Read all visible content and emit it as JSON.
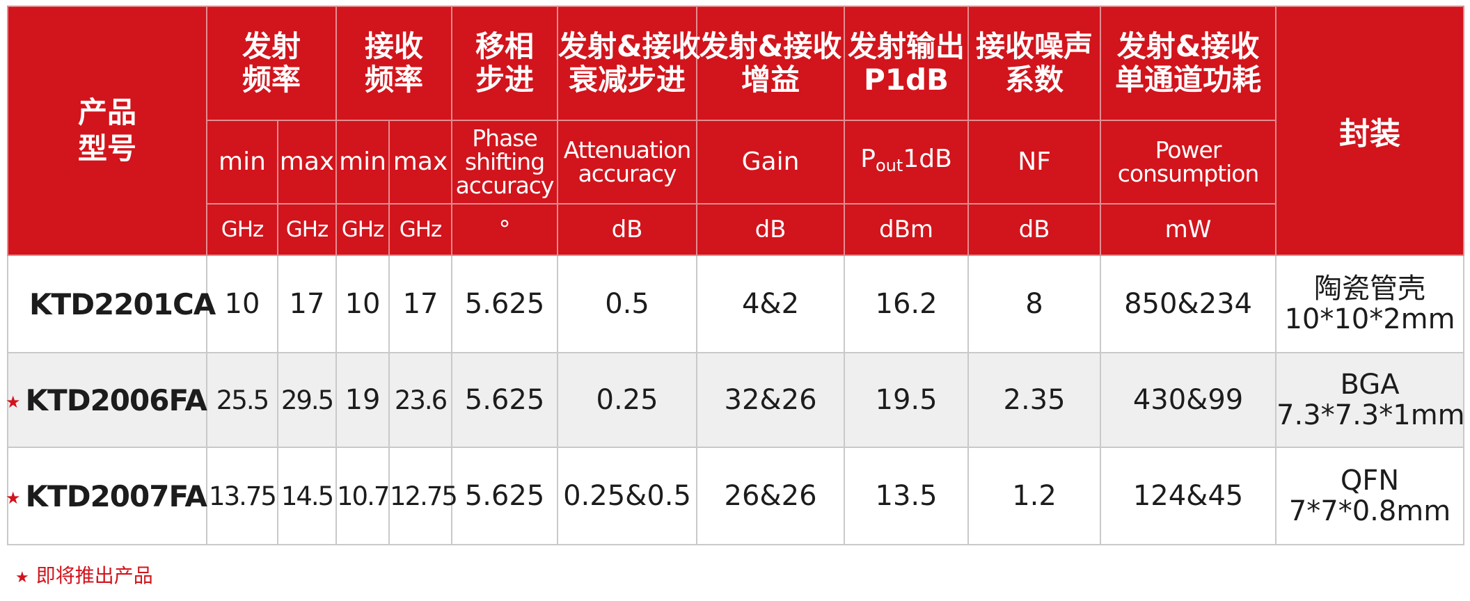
{
  "header": {
    "model": [
      "产品",
      "型号"
    ],
    "tx_freq": [
      "发射",
      "频率"
    ],
    "rx_freq": [
      "接收",
      "频率"
    ],
    "phase_step": [
      "移相",
      "步进"
    ],
    "atten_step": [
      "发射&接收",
      "衰减步进"
    ],
    "gain": [
      "发射&接收",
      "增益"
    ],
    "p1db": [
      "发射输出",
      "P1dB"
    ],
    "nf": [
      "接收噪声",
      "系数"
    ],
    "power": [
      "发射&接收",
      "单通道功耗"
    ],
    "package": "封装"
  },
  "subheader": {
    "min": "min",
    "max": "max",
    "phase": [
      "Phase",
      "shifting",
      "accuracy"
    ],
    "atten": [
      "Attenuation",
      "accuracy"
    ],
    "gain": "Gain",
    "pout_p": "P",
    "pout_sub": "out",
    "pout_rest": "1dB",
    "nf": "NF",
    "power": [
      "Power",
      "consumption"
    ]
  },
  "units": {
    "tx_min": "GHz",
    "tx_max": "GHz",
    "rx_min": "GHz",
    "rx_max": "GHz",
    "phase": "°",
    "atten": "dB",
    "gain": "dB",
    "p1db": "dBm",
    "nf": "dB",
    "power": "mW"
  },
  "star_symbol": "★",
  "rows": [
    {
      "upcoming": false,
      "model": "KTD2201CA",
      "tx_min": "10",
      "tx_max": "17",
      "rx_min": "10",
      "rx_max": "17",
      "phase": "5.625",
      "atten": "0.5",
      "gain": "4&2",
      "p1db": "16.2",
      "nf": "8",
      "power": "850&234",
      "package": [
        "陶瓷管壳",
        "10*10*2mm"
      ]
    },
    {
      "upcoming": true,
      "model": "KTD2006FA",
      "tx_min": "25.5",
      "tx_max": "29.5",
      "rx_min": "19",
      "rx_max": "23.6",
      "phase": "5.625",
      "atten": "0.25",
      "gain": "32&26",
      "p1db": "19.5",
      "nf": "2.35",
      "power": "430&99",
      "package": [
        "BGA",
        "7.3*7.3*1mm"
      ]
    },
    {
      "upcoming": true,
      "model": "KTD2007FA",
      "tx_min": "13.75",
      "tx_max": "14.5",
      "rx_min": "10.7",
      "rx_max": "12.75",
      "phase": "5.625",
      "atten": "0.25&0.5",
      "gain": "26&26",
      "p1db": "13.5",
      "nf": "1.2",
      "power": "124&45",
      "package": [
        "QFN",
        "7*7*0.8mm"
      ]
    }
  ],
  "footnote": "即将推出产品",
  "colors": {
    "header_bg": "#d2141c",
    "header_text": "#ffffff",
    "row_alt_bg": "#efefef",
    "star": "#d2141c"
  }
}
